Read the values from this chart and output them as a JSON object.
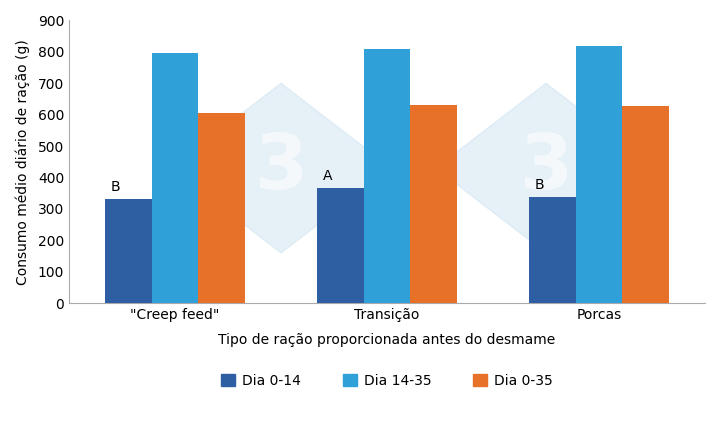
{
  "categories": [
    "\"Creep feed\"",
    "Transição",
    "Porcas"
  ],
  "series": {
    "Dia 0-14": [
      333,
      367,
      338
    ],
    "Dia 14-35": [
      795,
      808,
      820
    ],
    "Dia 0-35": [
      606,
      632,
      628
    ]
  },
  "colors": {
    "Dia 0-14": "#2e5fa3",
    "Dia 14-35": "#30a0d8",
    "Dia 0-35": "#e8712a"
  },
  "annotations": [
    {
      "group": 0,
      "series": "Dia 0-14",
      "text": "B"
    },
    {
      "group": 1,
      "series": "Dia 0-14",
      "text": "A"
    },
    {
      "group": 2,
      "series": "Dia 0-14",
      "text": "B"
    }
  ],
  "ylabel": "Consumo médio diário de ração (g)",
  "xlabel": "Tipo de ração proporcionada antes do desmame",
  "ylim": [
    0,
    900
  ],
  "yticks": [
    0,
    100,
    200,
    300,
    400,
    500,
    600,
    700,
    800,
    900
  ],
  "bar_width": 0.22,
  "watermark_color": "#d0e4f2",
  "watermark_alpha": 0.55,
  "background_color": "#ffffff"
}
